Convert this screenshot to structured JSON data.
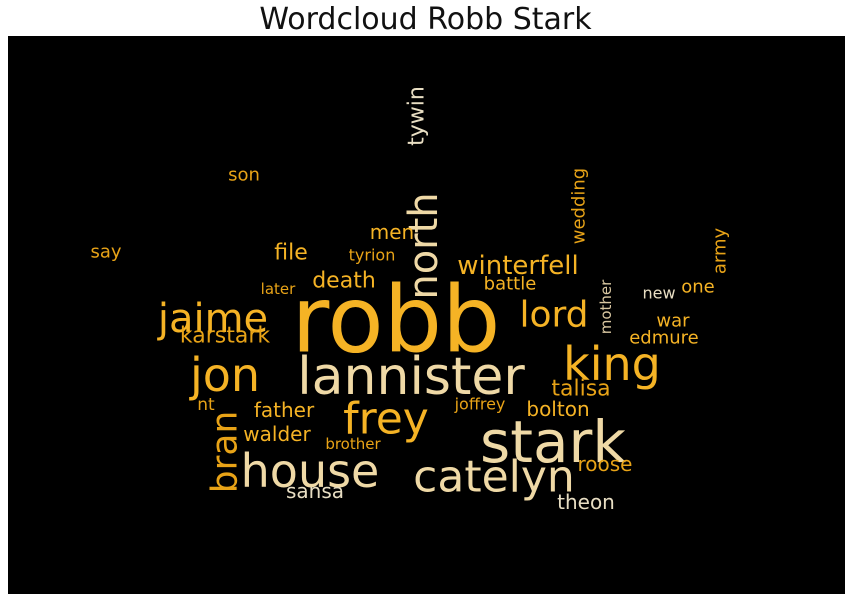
{
  "chart_data": {
    "type": "wordcloud",
    "title": "Wordcloud Robb Stark",
    "background_color": "#000000",
    "palette": {
      "gold": "#F5B325",
      "amber": "#E8A317",
      "sand": "#EFD9A6",
      "pale": "#E8DEC3",
      "light": "#D9C7A1"
    },
    "words": [
      {
        "text": "robb",
        "color": "#F5B325"
      },
      {
        "text": "stark",
        "color": "#EFD9A6"
      },
      {
        "text": "lannister",
        "color": "#EFD9A6"
      },
      {
        "text": "house",
        "color": "#EFD9A6"
      },
      {
        "text": "catelyn",
        "color": "#EFD9A6"
      },
      {
        "text": "frey",
        "color": "#F5B325"
      },
      {
        "text": "king",
        "color": "#F5B325"
      },
      {
        "text": "jon",
        "color": "#F5B325"
      },
      {
        "text": "jaime",
        "color": "#F5B325"
      },
      {
        "text": "north",
        "color": "#EFD9A6"
      },
      {
        "text": "lord",
        "color": "#F5B325"
      },
      {
        "text": "bran",
        "color": "#E8A317"
      },
      {
        "text": "winterfell",
        "color": "#F5B325"
      },
      {
        "text": "talisa",
        "color": "#E8A317"
      },
      {
        "text": "death",
        "color": "#F5B325"
      },
      {
        "text": "karstark",
        "color": "#E8A317"
      },
      {
        "text": "tywin",
        "color": "#E8DEC3"
      },
      {
        "text": "file",
        "color": "#F5B325"
      },
      {
        "text": "men",
        "color": "#F5B325"
      },
      {
        "text": "walder",
        "color": "#F5B325"
      },
      {
        "text": "father",
        "color": "#F5B325"
      },
      {
        "text": "sansa",
        "color": "#E8DEC3"
      },
      {
        "text": "roose",
        "color": "#E8A317"
      },
      {
        "text": "theon",
        "color": "#E8DEC3"
      },
      {
        "text": "bolton",
        "color": "#F5B325"
      },
      {
        "text": "battle",
        "color": "#F5B325"
      },
      {
        "text": "edmure",
        "color": "#F5B325"
      },
      {
        "text": "war",
        "color": "#F5B325"
      },
      {
        "text": "army",
        "color": "#E8A317"
      },
      {
        "text": "wedding",
        "color": "#E8A317"
      },
      {
        "text": "one",
        "color": "#F5B325"
      },
      {
        "text": "new",
        "color": "#E8DEC3"
      },
      {
        "text": "say",
        "color": "#E8A317"
      },
      {
        "text": "son",
        "color": "#E8A317"
      },
      {
        "text": "tyrion",
        "color": "#E8A317"
      },
      {
        "text": "later",
        "color": "#E8A317"
      },
      {
        "text": "nt",
        "color": "#E8A317"
      },
      {
        "text": "joffrey",
        "color": "#E8A317"
      },
      {
        "text": "brother",
        "color": "#E8A317"
      },
      {
        "text": "mother",
        "color": "#D9C7A1"
      }
    ]
  }
}
